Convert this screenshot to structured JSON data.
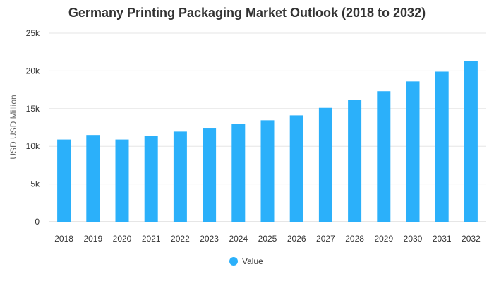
{
  "chart_data": {
    "type": "bar",
    "title": "Germany Printing Packaging Market Outlook (2018 to 2032)",
    "xlabel": "",
    "ylabel": "USD USD Million",
    "categories": [
      "2018",
      "2019",
      "2020",
      "2021",
      "2022",
      "2023",
      "2024",
      "2025",
      "2026",
      "2027",
      "2028",
      "2029",
      "2030",
      "2031",
      "2032"
    ],
    "series": [
      {
        "name": "Value",
        "color": "#2bb0fa",
        "values": [
          10900,
          11500,
          10900,
          11400,
          11950,
          12450,
          13000,
          13450,
          14100,
          15100,
          16150,
          17300,
          18600,
          19900,
          21300
        ]
      }
    ],
    "ylim": [
      0,
      25000
    ],
    "yticks": [
      0,
      5000,
      10000,
      15000,
      20000,
      25000
    ],
    "ytick_labels": [
      "0",
      "5k",
      "10k",
      "15k",
      "20k",
      "25k"
    ],
    "grid": true,
    "legend_position": "bottom"
  }
}
